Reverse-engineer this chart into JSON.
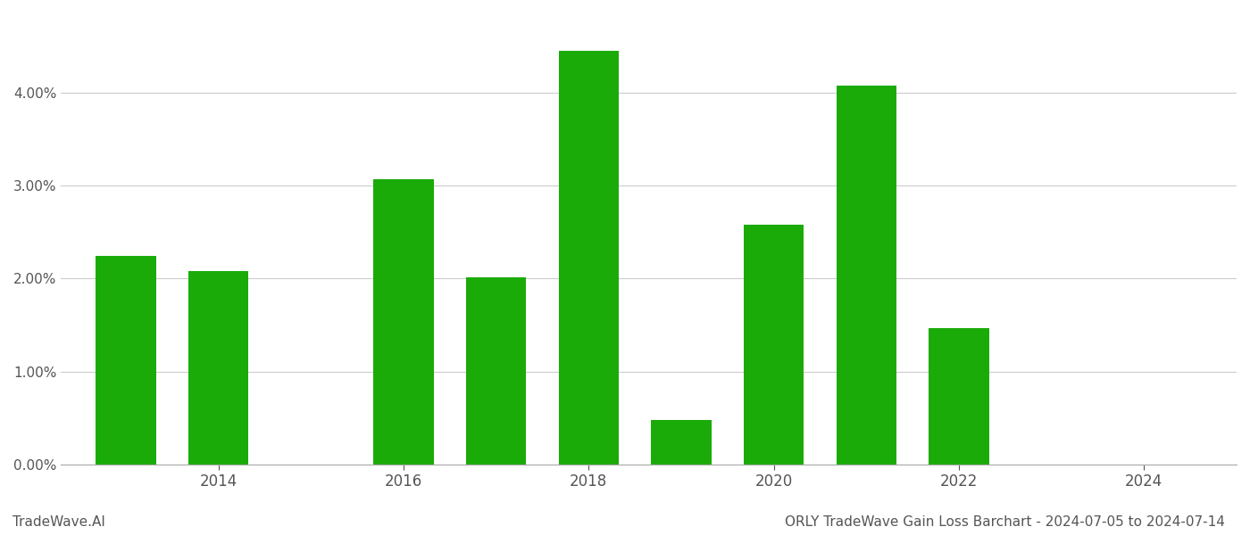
{
  "years": [
    2013,
    2014,
    2016,
    2017,
    2018,
    2019,
    2020,
    2021,
    2022,
    2023
  ],
  "values": [
    0.02248,
    0.02078,
    0.03072,
    0.02018,
    0.04452,
    0.00481,
    0.02583,
    0.04082,
    0.01468,
    0.0
  ],
  "bar_color": "#1aab08",
  "title": "ORLY TradeWave Gain Loss Barchart - 2024-07-05 to 2024-07-14",
  "watermark": "TradeWave.AI",
  "ylim_min": 0.0,
  "ylim_max": 0.048,
  "xlim_min": 2012.3,
  "xlim_max": 2025.0,
  "background_color": "#ffffff",
  "grid_color": "#cccccc",
  "title_color": "#555555",
  "tick_color": "#555555",
  "watermark_color": "#555555",
  "title_fontsize": 11,
  "watermark_fontsize": 11,
  "xticks": [
    2014,
    2016,
    2018,
    2020,
    2022,
    2024
  ],
  "bar_width": 0.65
}
